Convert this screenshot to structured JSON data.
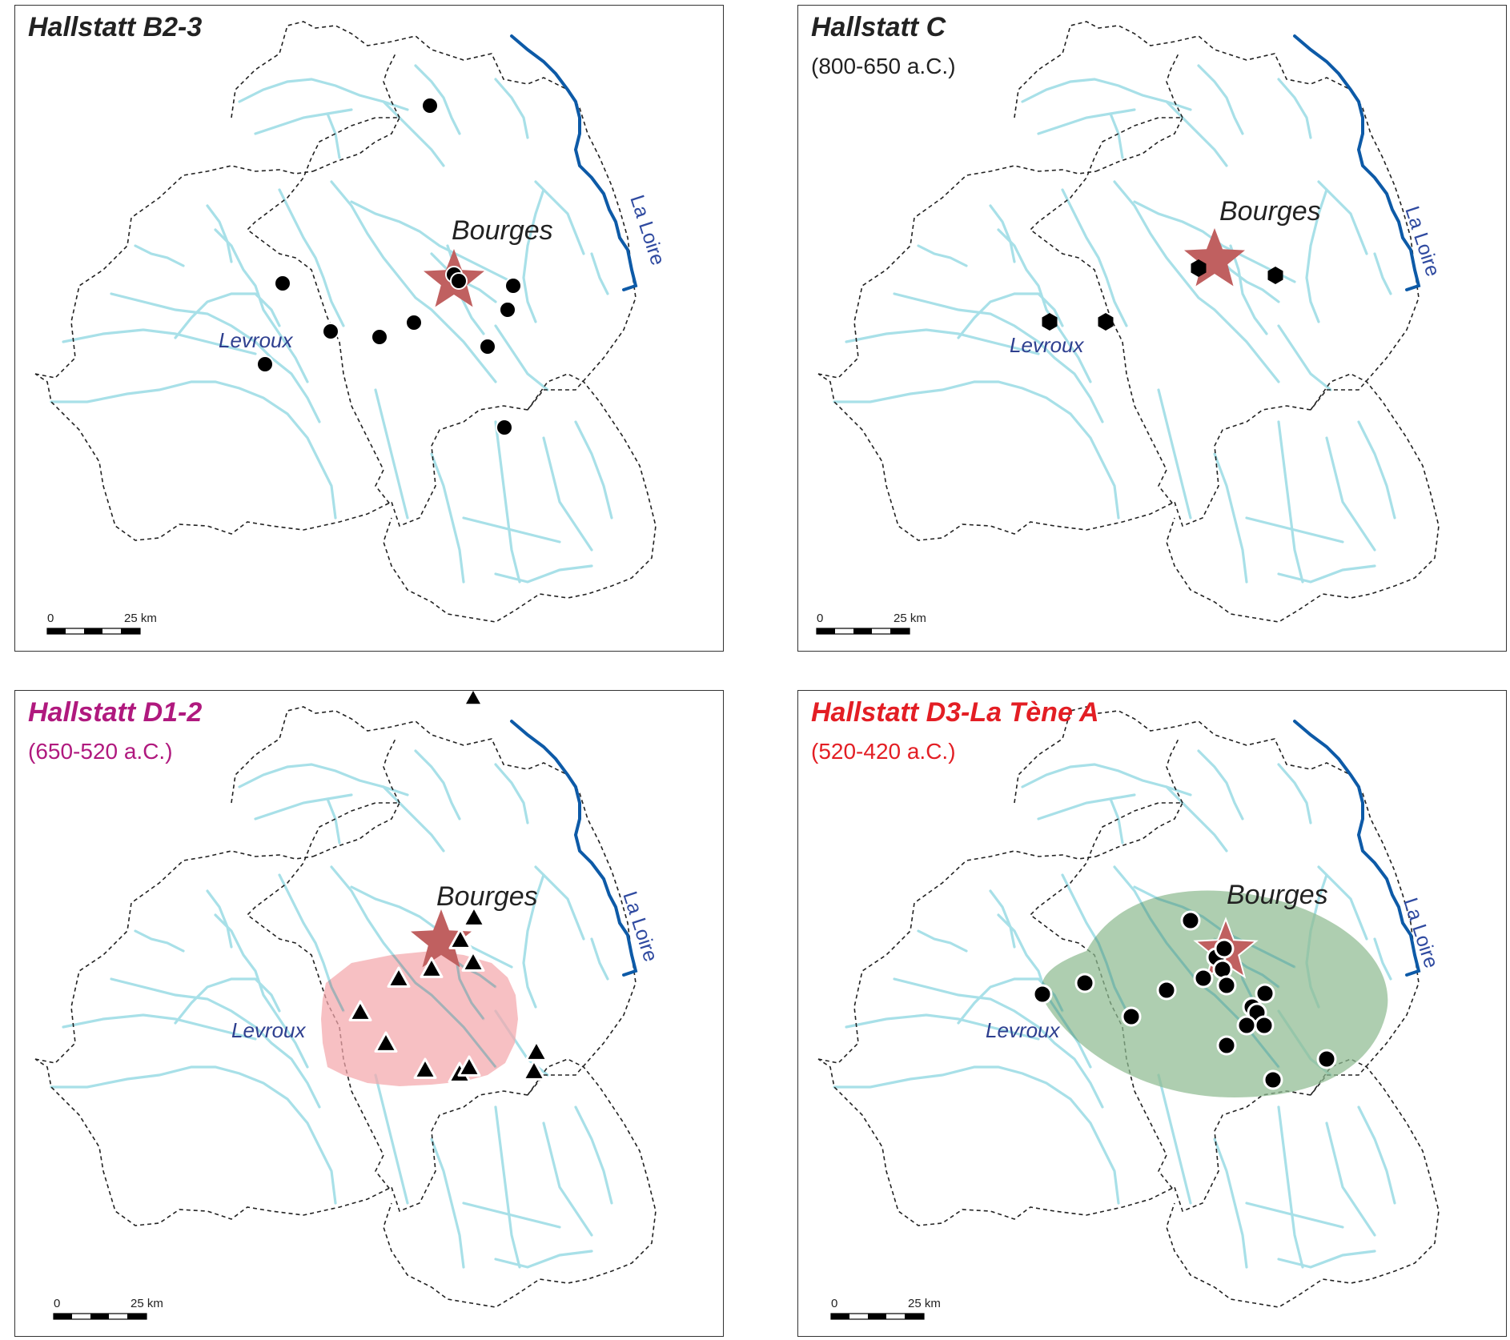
{
  "colors": {
    "river": "#a8e0e8",
    "loire": "#0d5aa7",
    "border": "#222222",
    "star": "#c06060",
    "zone_d12": "#f4a8ac",
    "zone_d3": "#8fbb91",
    "title_d12": "#b0197e",
    "title_d3": "#e31e24",
    "title_default": "#222222"
  },
  "labels": {
    "town_main": "Bourges",
    "town_secondary": "Levroux",
    "river": "La Loire",
    "scale_zero": "0",
    "scale_dist": "25 km"
  },
  "panels": [
    {
      "title": "Hallstatt B2-3",
      "period": "",
      "site_symbol": "circle-icon",
      "zone": ""
    },
    {
      "title": "Hallstatt C",
      "period": "(800-650 a.C.)",
      "site_symbol": "hexagon-icon",
      "zone": ""
    },
    {
      "title": "Hallstatt D1-2",
      "period": "(650-520 a.C.)",
      "site_symbol": "triangle-icon",
      "zone": "pink"
    },
    {
      "title": "Hallstatt D3-La Tène A",
      "period": "(520-420 a.C.)",
      "site_symbol": "circle-icon",
      "zone": "green"
    }
  ]
}
